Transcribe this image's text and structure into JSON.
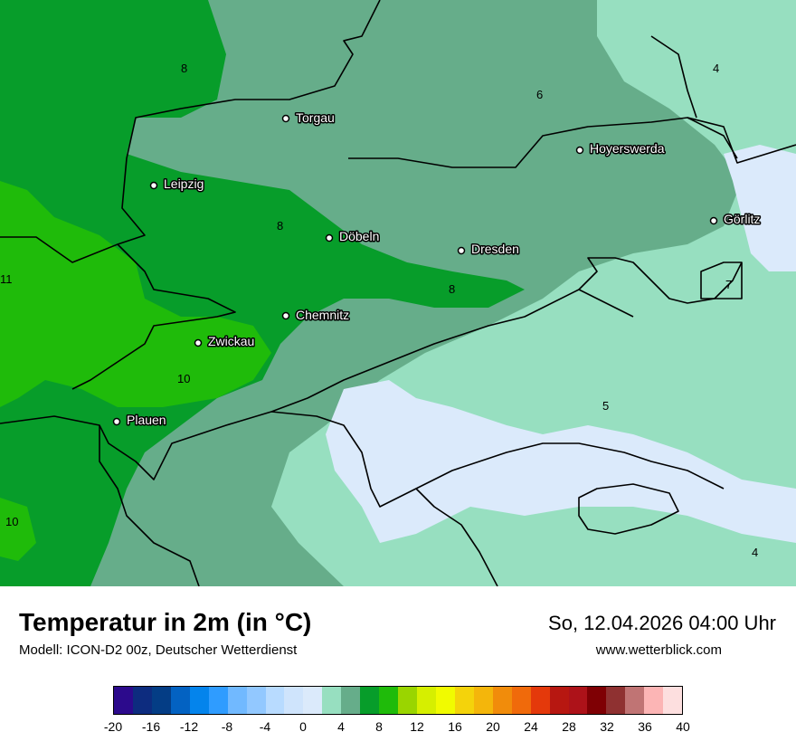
{
  "map": {
    "cities": [
      {
        "name": "Torgau"
      },
      {
        "name": "Hoyerswerda"
      },
      {
        "name": "Leipzig"
      },
      {
        "name": "Görlitz"
      },
      {
        "name": "Döbeln"
      },
      {
        "name": "Dresden"
      },
      {
        "name": "Chemnitz"
      },
      {
        "name": "Zwickau"
      },
      {
        "name": "Plauen"
      }
    ],
    "isolines": [
      "8",
      "4",
      "6",
      "8",
      "11",
      "8",
      "7",
      "10",
      "5",
      "10",
      "4"
    ]
  },
  "footer": {
    "title": "Temperatur in 2m (in °C)",
    "model": "Modell: ICON-D2 00z, Deutscher Wetterdienst",
    "datetime": "So, 12.04.2026 04:00 Uhr",
    "website": "www.wetterblick.com"
  },
  "legend": {
    "colors": [
      "#2c0a8c",
      "#0d2c7f",
      "#043d85",
      "#0362c2",
      "#0484ec",
      "#2f9cff",
      "#71b9ff",
      "#92c8ff",
      "#b8dbff",
      "#cfe4fc",
      "#dbeafb",
      "#97dfc0",
      "#66ad8a",
      "#079d2a",
      "#1fbb0a",
      "#9ad500",
      "#d6ef00",
      "#f1fb00",
      "#f4d30b",
      "#f4b60b",
      "#f18c0b",
      "#f06a0b",
      "#e4390b",
      "#b71711",
      "#ad1219",
      "#7f0004",
      "#8f3131",
      "#c07474",
      "#fcb5b5",
      "#fddfdf"
    ],
    "ticks": [
      "-20",
      "-16",
      "-12",
      "-8",
      "-4",
      "0",
      "4",
      "8",
      "12",
      "16",
      "20",
      "24",
      "28",
      "32",
      "36",
      "40"
    ]
  }
}
